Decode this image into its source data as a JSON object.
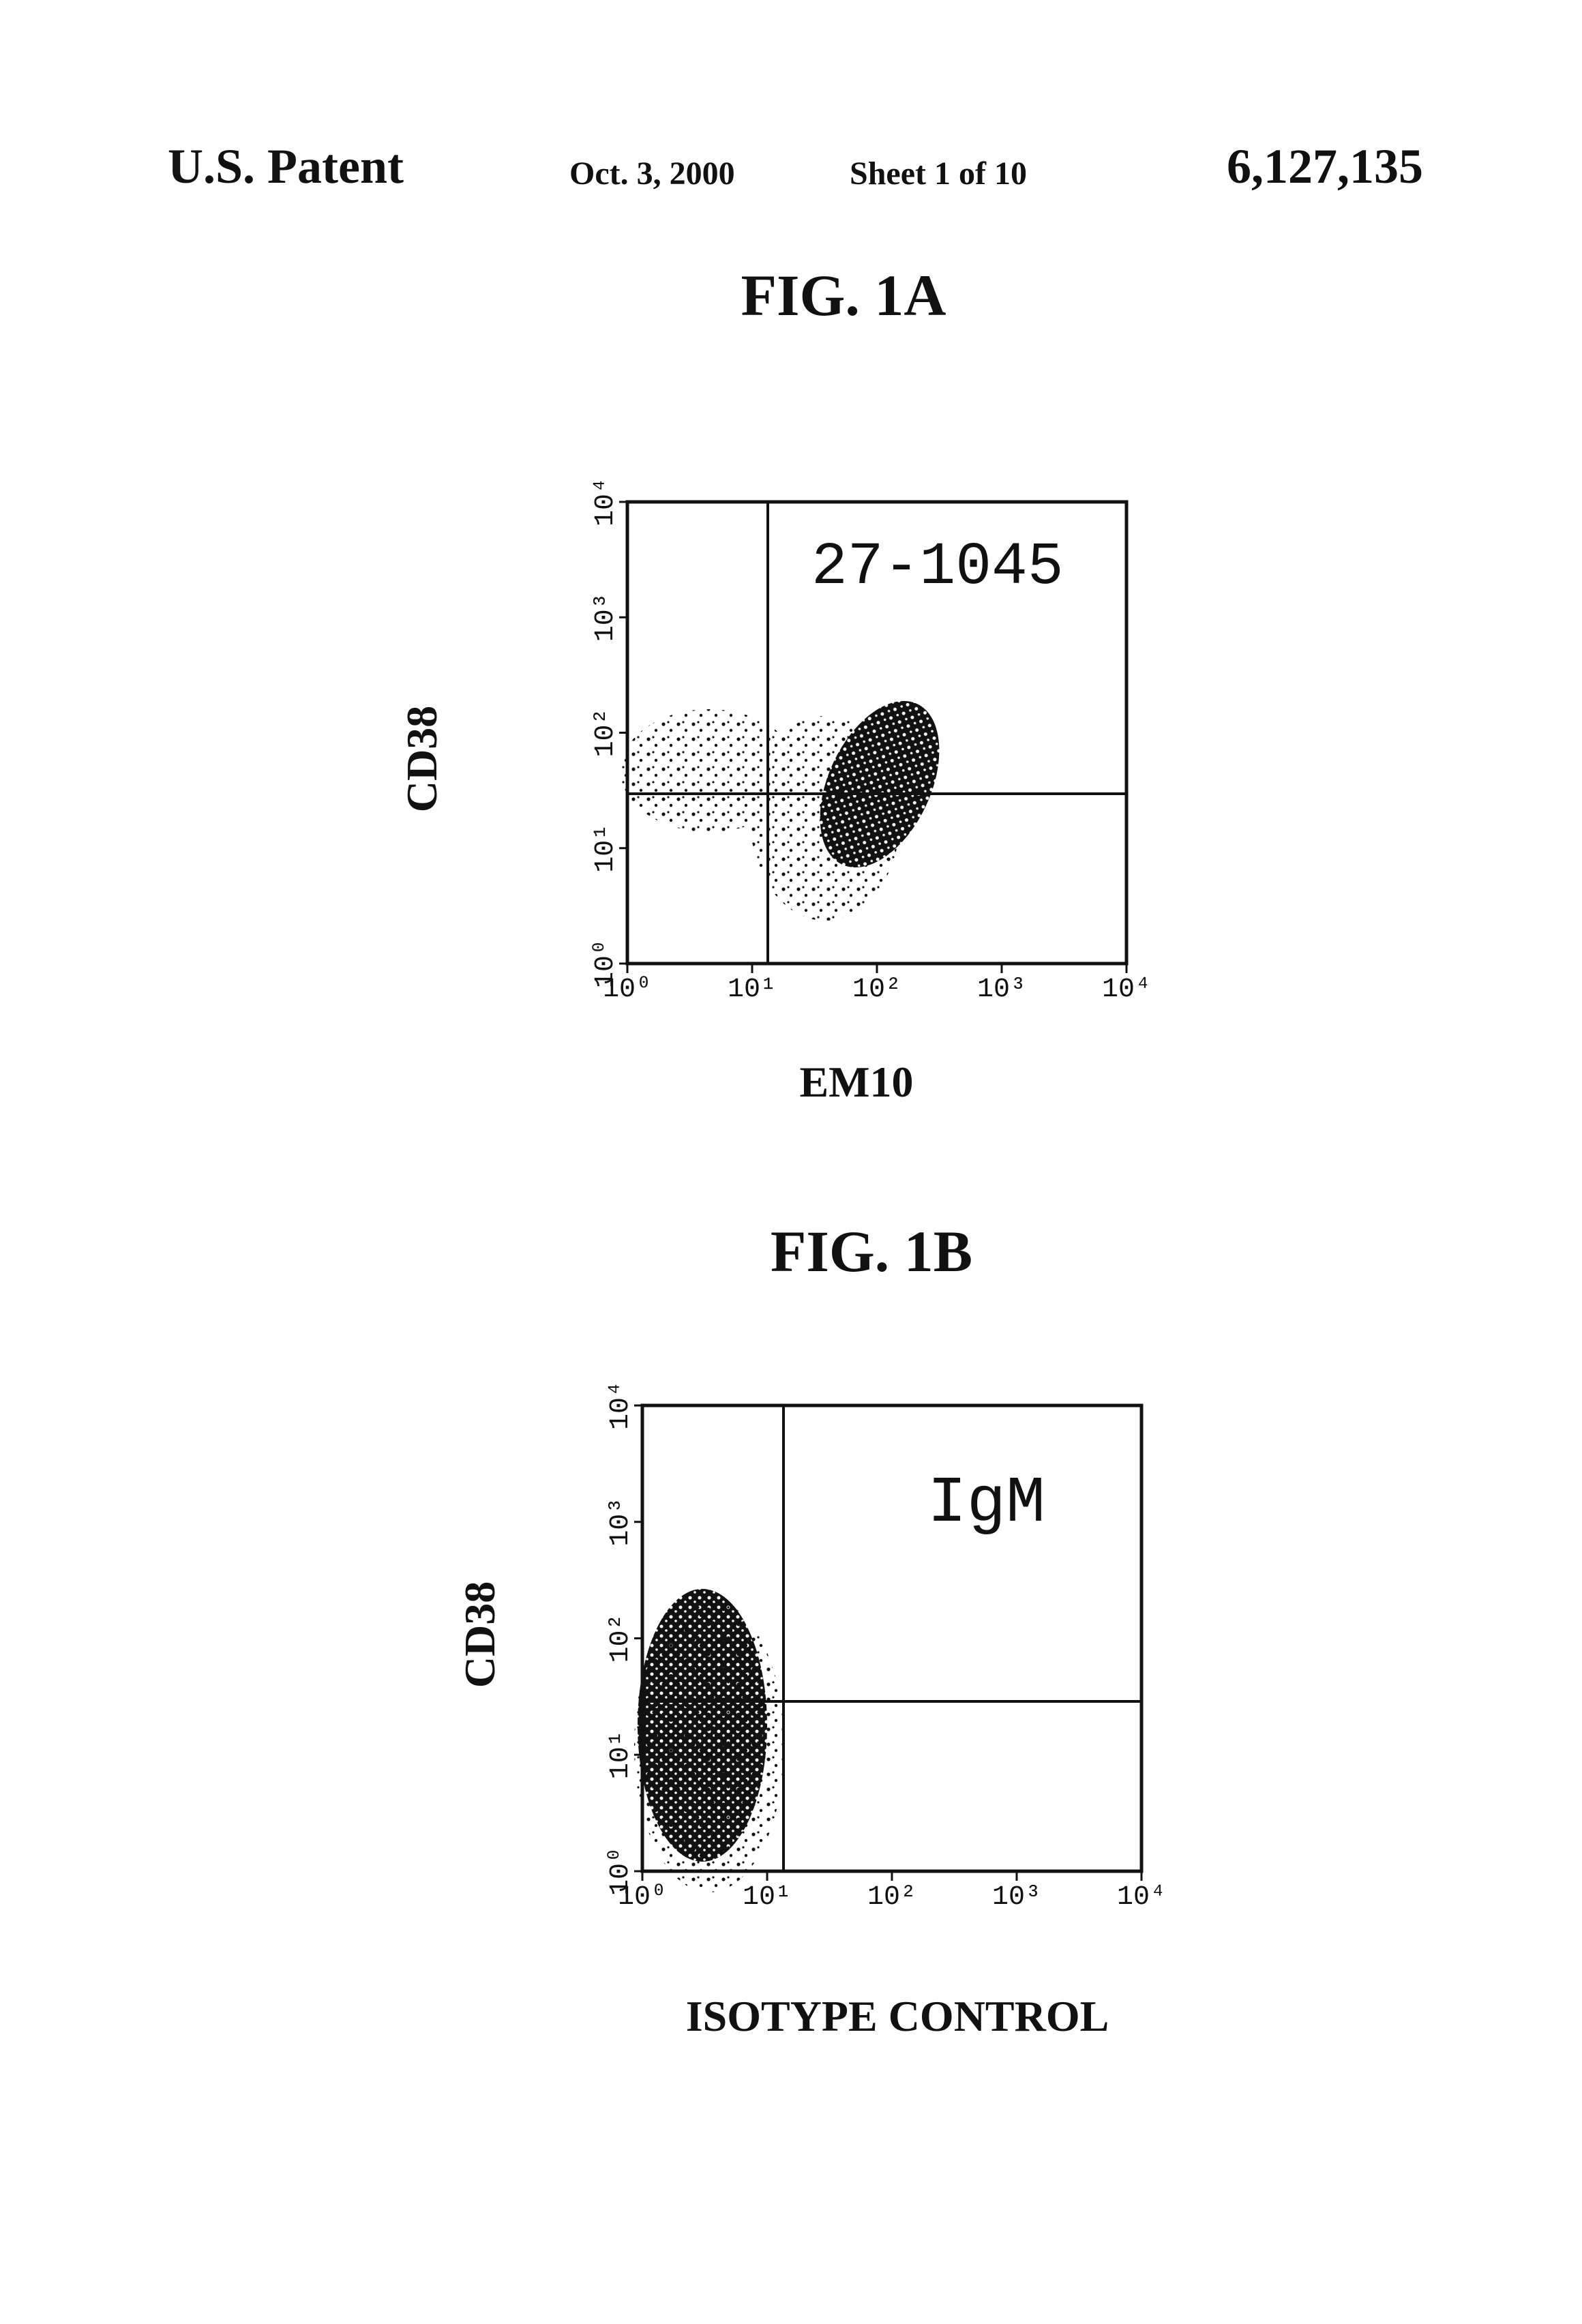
{
  "header": {
    "left": "U.S. Patent",
    "date": "Oct. 3, 2000",
    "sheet": "Sheet 1 of 10",
    "number": "6,127,135"
  },
  "figures": [
    {
      "title": "FIG. 1A",
      "annotation": "27-1045",
      "y_label": "CD38",
      "x_label": "EM10",
      "x_ticks": [
        "10⁰",
        "10¹",
        "10²",
        "10³",
        "10⁴"
      ],
      "y_ticks": [
        "10⁰",
        "10¹",
        "10²",
        "10³",
        "10⁴"
      ]
    },
    {
      "title": "FIG. 1B",
      "annotation": "IgM",
      "y_label": "CD38",
      "x_label": "ISOTYPE CONTROL",
      "x_ticks": [
        "10⁰",
        "10¹",
        "10²",
        "10³",
        "10⁴"
      ],
      "y_ticks": [
        "10⁰",
        "10¹",
        "10²",
        "10³",
        "10⁴"
      ]
    }
  ]
}
